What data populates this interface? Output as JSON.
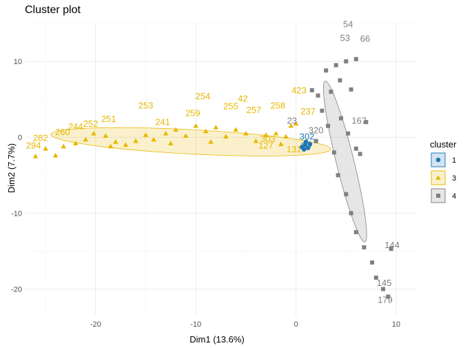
{
  "title": "Cluster plot",
  "chart_data": {
    "type": "scatter",
    "title": "Cluster plot",
    "xlabel": "Dim1 (13.6%)",
    "ylabel": "Dim2 (7.7%)",
    "xlim": [
      -27,
      12
    ],
    "ylim": [
      -23.5,
      15
    ],
    "x_ticks": [
      -20,
      -10,
      0,
      10
    ],
    "y_ticks": [
      -20,
      -10,
      0,
      10
    ],
    "grid": true,
    "legend": {
      "title": "cluster",
      "position": "right",
      "entries": [
        "1",
        "3",
        "4"
      ]
    },
    "colors": {
      "1": "#1f77b4",
      "3": "#e7b800",
      "4": "#808080"
    },
    "series": [
      {
        "name": "1",
        "marker": "circle",
        "points": [
          {
            "x": 0.6,
            "y": -1.3
          },
          {
            "x": 0.9,
            "y": -1.0
          },
          {
            "x": 1.2,
            "y": -1.4
          },
          {
            "x": 1.0,
            "y": -0.6
          },
          {
            "x": 1.4,
            "y": -0.9
          },
          {
            "x": 0.8,
            "y": -1.6
          }
        ],
        "ellipse": {
          "cx": 1.0,
          "cy": -1.1,
          "rx": 0.5,
          "ry": 0.5,
          "angle": 0
        },
        "labels": [
          {
            "text": "302",
            "x": 1.1,
            "y": -0.3
          }
        ]
      },
      {
        "name": "3",
        "marker": "triangle",
        "points": [
          {
            "x": -26.0,
            "y": -2.5
          },
          {
            "x": -25.0,
            "y": -1.5
          },
          {
            "x": -24.0,
            "y": -2.4
          },
          {
            "x": -23.2,
            "y": -1.2
          },
          {
            "x": -22.0,
            "y": -0.8
          },
          {
            "x": -21.0,
            "y": -0.3
          },
          {
            "x": -20.2,
            "y": 0.5
          },
          {
            "x": -19.0,
            "y": 0.2
          },
          {
            "x": -18.0,
            "y": -0.6
          },
          {
            "x": -17.0,
            "y": -1.0
          },
          {
            "x": -16.0,
            "y": -0.5
          },
          {
            "x": -15.0,
            "y": 0.3
          },
          {
            "x": -14.2,
            "y": -0.3
          },
          {
            "x": -13.0,
            "y": 0.5
          },
          {
            "x": -12.0,
            "y": 1.0
          },
          {
            "x": -11.0,
            "y": 0.2
          },
          {
            "x": -10.0,
            "y": 1.5
          },
          {
            "x": -9.0,
            "y": 0.8
          },
          {
            "x": -8.0,
            "y": 1.3
          },
          {
            "x": -7.0,
            "y": 0.1
          },
          {
            "x": -6.0,
            "y": 1.0
          },
          {
            "x": -5.0,
            "y": 0.5
          },
          {
            "x": -4.0,
            "y": -0.5
          },
          {
            "x": -3.0,
            "y": 0.3
          },
          {
            "x": -2.0,
            "y": 0.5
          },
          {
            "x": -1.0,
            "y": 0.1
          },
          {
            "x": -0.5,
            "y": 1.5
          },
          {
            "x": 0.0,
            "y": 1.8
          },
          {
            "x": -1.5,
            "y": -0.9
          },
          {
            "x": -8.5,
            "y": -0.6
          },
          {
            "x": -12.5,
            "y": -0.8
          },
          {
            "x": -18.5,
            "y": -1.2
          }
        ],
        "ellipse": {
          "cx": -10.5,
          "cy": -0.6,
          "rx": 14.0,
          "ry": 1.6,
          "angle": -4
        },
        "labels": [
          {
            "text": "253",
            "x": -15.0,
            "y": 3.8
          },
          {
            "text": "254",
            "x": -9.3,
            "y": 5.0
          },
          {
            "text": "42",
            "x": -5.3,
            "y": 4.7
          },
          {
            "text": "251",
            "x": -18.7,
            "y": 2.0
          },
          {
            "text": "252",
            "x": -20.5,
            "y": 1.4
          },
          {
            "text": "244",
            "x": -22.0,
            "y": 1.0
          },
          {
            "text": "255",
            "x": -6.5,
            "y": 3.7
          },
          {
            "text": "257",
            "x": -4.2,
            "y": 3.2
          },
          {
            "text": "258",
            "x": -1.8,
            "y": 3.8
          },
          {
            "text": "423",
            "x": 0.3,
            "y": 5.8
          },
          {
            "text": "259",
            "x": -10.3,
            "y": 2.8
          },
          {
            "text": "260",
            "x": -23.3,
            "y": 0.3
          },
          {
            "text": "282",
            "x": -25.5,
            "y": -0.5
          },
          {
            "text": "294",
            "x": -26.2,
            "y": -1.5
          },
          {
            "text": "303",
            "x": -2.8,
            "y": -0.6
          },
          {
            "text": "127",
            "x": -3.0,
            "y": -1.5
          },
          {
            "text": "131",
            "x": -0.2,
            "y": -2.0
          },
          {
            "text": "237",
            "x": 1.2,
            "y": 3.0
          },
          {
            "text": "241",
            "x": -13.3,
            "y": 1.6
          }
        ]
      },
      {
        "name": "4",
        "marker": "square",
        "points": [
          {
            "x": 1.6,
            "y": 6.2
          },
          {
            "x": 2.2,
            "y": 5.5
          },
          {
            "x": 3.0,
            "y": 8.8
          },
          {
            "x": 3.5,
            "y": 6.0
          },
          {
            "x": 4.0,
            "y": 9.5
          },
          {
            "x": 4.4,
            "y": 7.5
          },
          {
            "x": 5.0,
            "y": 10.0
          },
          {
            "x": 5.5,
            "y": 6.3
          },
          {
            "x": 6.0,
            "y": 10.3
          },
          {
            "x": 2.6,
            "y": 3.5
          },
          {
            "x": 3.2,
            "y": 1.5
          },
          {
            "x": 4.5,
            "y": 2.5
          },
          {
            "x": 5.2,
            "y": 0.5
          },
          {
            "x": 6.0,
            "y": -1.5
          },
          {
            "x": 3.8,
            "y": -2.0
          },
          {
            "x": 4.2,
            "y": -5.0
          },
          {
            "x": 5.0,
            "y": -7.5
          },
          {
            "x": 5.5,
            "y": -10.0
          },
          {
            "x": 6.0,
            "y": -12.5
          },
          {
            "x": 6.8,
            "y": -14.5
          },
          {
            "x": 7.6,
            "y": -16.5
          },
          {
            "x": 8.0,
            "y": -18.5
          },
          {
            "x": 8.7,
            "y": -20.0
          },
          {
            "x": 9.2,
            "y": -21.0
          },
          {
            "x": 9.5,
            "y": -14.7
          },
          {
            "x": 2.0,
            "y": -0.5
          },
          {
            "x": 7.0,
            "y": 2.0
          },
          {
            "x": 6.4,
            "y": -2.2
          }
        ],
        "ellipse": {
          "cx": 4.9,
          "cy": -3.2,
          "rx": 19.5,
          "ry": 2.1,
          "angle": -76
        },
        "labels": [
          {
            "text": "54",
            "x": 5.2,
            "y": 14.5
          },
          {
            "text": "53",
            "x": 4.9,
            "y": 12.7
          },
          {
            "text": "66",
            "x": 6.9,
            "y": 12.6
          },
          {
            "text": "167",
            "x": 6.3,
            "y": 1.8
          },
          {
            "text": "144",
            "x": 9.6,
            "y": -14.6
          },
          {
            "text": "145",
            "x": 8.8,
            "y": -19.6
          },
          {
            "text": "179",
            "x": 8.9,
            "y": -21.8
          },
          {
            "text": "23",
            "x": -0.4,
            "y": 1.8
          },
          {
            "text": "320",
            "x": 2.0,
            "y": 0.5
          }
        ]
      }
    ]
  }
}
